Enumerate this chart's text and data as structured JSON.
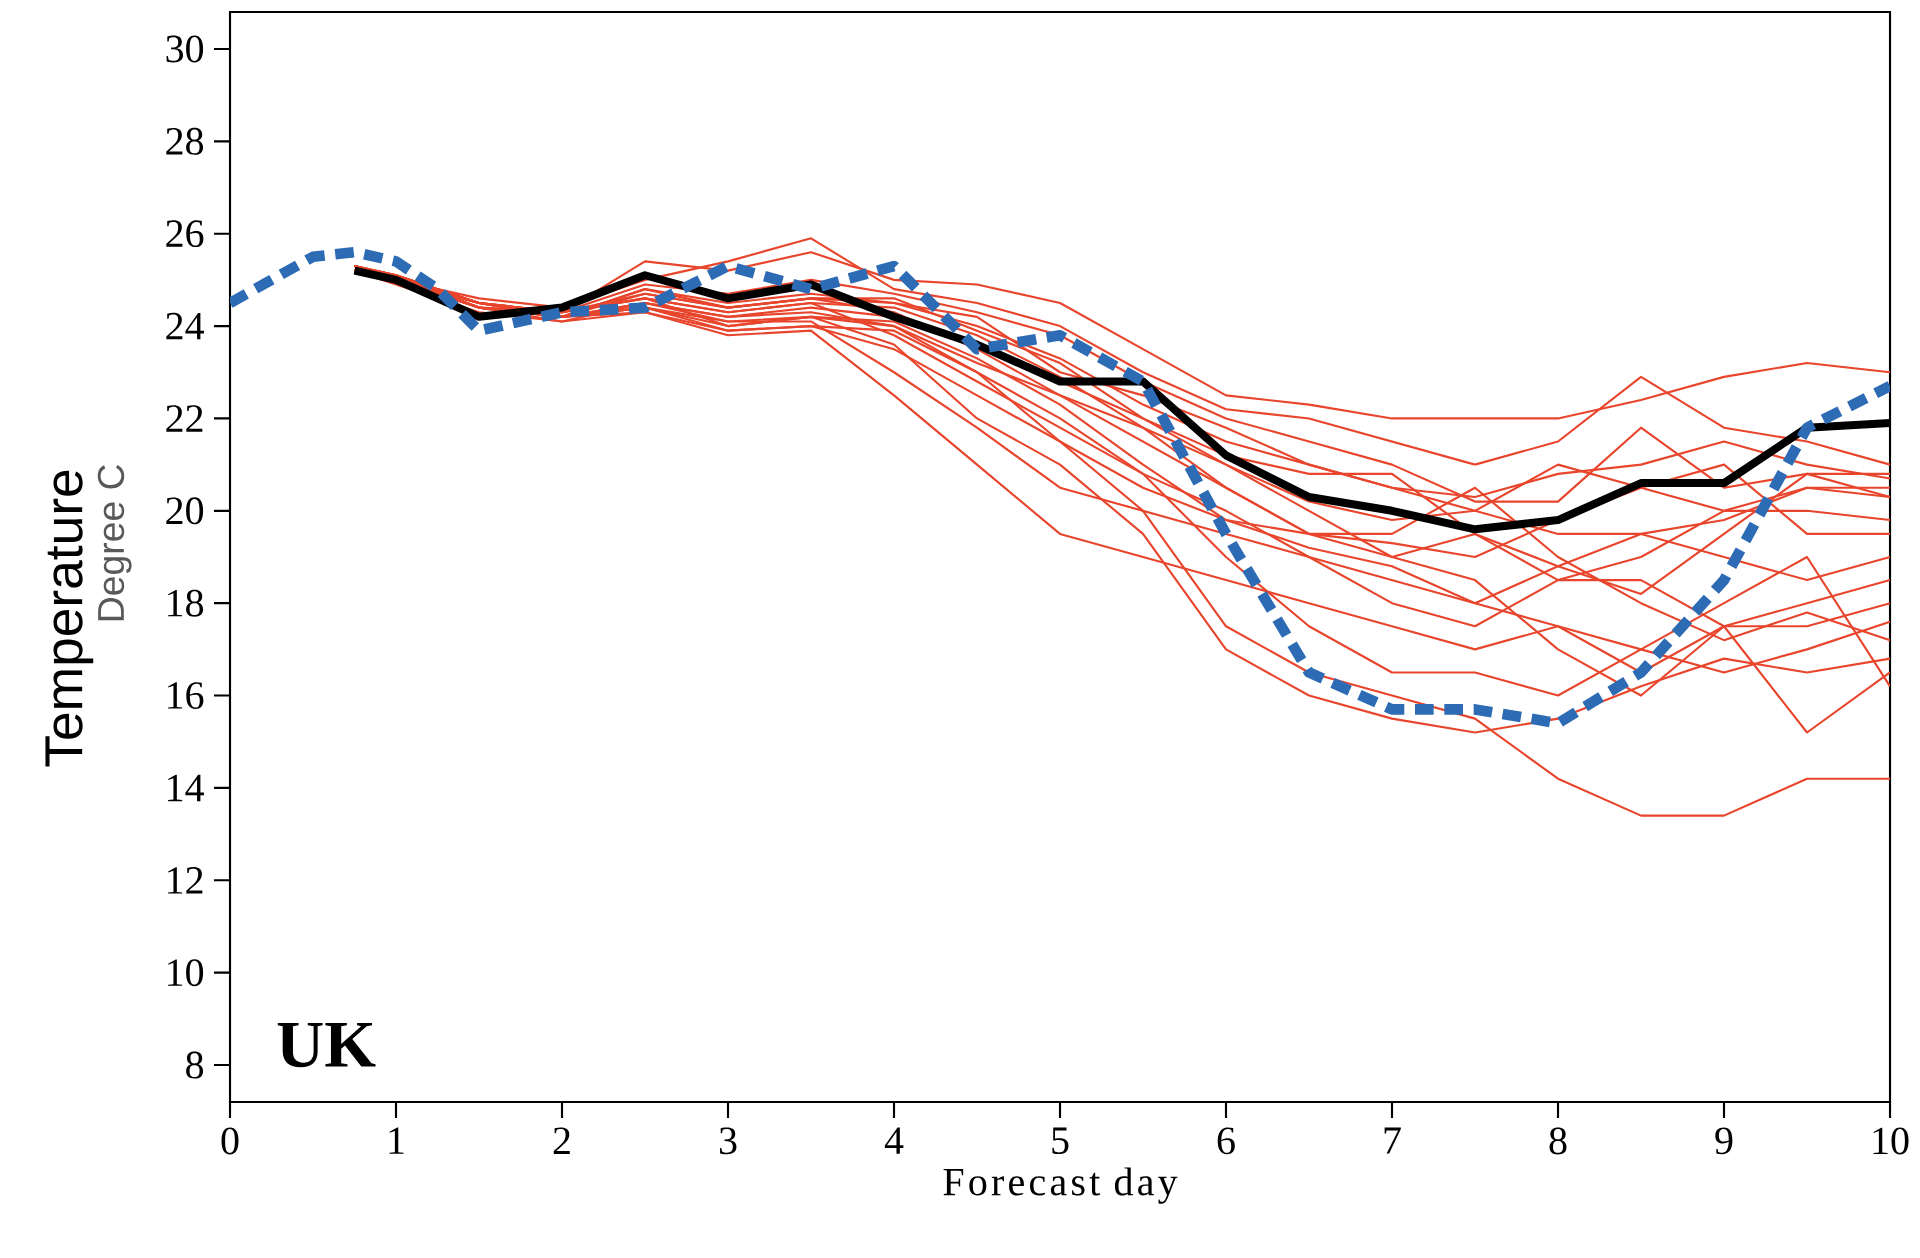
{
  "chart_data": {
    "type": "line",
    "xlabel": "Forecast day",
    "ylabel": "Temperature",
    "annotations": [
      "Degree C",
      "UK"
    ],
    "xlim": [
      0,
      10
    ],
    "ylim": [
      7.2,
      30.8
    ],
    "xticks": [
      0,
      1,
      2,
      3,
      4,
      5,
      6,
      7,
      8,
      9,
      10
    ],
    "yticks": [
      8,
      10,
      12,
      14,
      16,
      18,
      20,
      22,
      24,
      26,
      28,
      30
    ],
    "grid": false,
    "marker": "none",
    "series": [
      {
        "color": "#e8452c",
        "x": [
          0.75,
          1,
          1.5,
          2,
          2.5,
          3,
          3.5,
          4,
          4.5,
          5,
          5.5,
          6,
          6.5,
          7,
          7.5,
          8,
          8.5,
          9,
          9.5,
          10
        ],
        "values": [
          25.3,
          25.1,
          24.5,
          24.3,
          25.4,
          25.2,
          25.6,
          25.0,
          24.9,
          24.5,
          23.5,
          22.5,
          22.3,
          22.0,
          22.0,
          22.0,
          22.4,
          22.9,
          23.2,
          23.0
        ]
      },
      {
        "color": "#e8452c",
        "x": [
          0.75,
          1,
          1.5,
          2,
          2.5,
          3,
          3.5,
          4,
          4.5,
          5,
          5.5,
          6,
          6.5,
          7,
          7.5,
          8,
          8.5,
          9,
          9.5,
          10
        ],
        "values": [
          25.2,
          25.0,
          24.6,
          24.4,
          25.0,
          25.4,
          25.9,
          24.8,
          24.5,
          24.0,
          23.0,
          22.2,
          22.0,
          21.5,
          21.0,
          21.5,
          22.9,
          21.8,
          21.5,
          21.0
        ]
      },
      {
        "color": "#e8452c",
        "x": [
          0.75,
          1,
          1.5,
          2,
          2.5,
          3,
          3.5,
          4,
          4.5,
          5,
          5.5,
          6,
          6.5,
          7,
          7.5,
          8,
          8.5,
          9,
          9.5,
          10
        ],
        "values": [
          25.3,
          25.0,
          24.4,
          24.2,
          24.8,
          24.4,
          24.6,
          24.5,
          24.0,
          23.3,
          22.3,
          21.5,
          21.0,
          20.5,
          20.3,
          20.8,
          21.0,
          21.5,
          21.0,
          20.7
        ]
      },
      {
        "color": "#e8452c",
        "x": [
          0.75,
          1,
          1.5,
          2,
          2.5,
          3,
          3.5,
          4,
          4.5,
          5,
          5.5,
          6,
          6.5,
          7,
          7.5,
          8,
          8.5,
          9,
          9.5,
          10
        ],
        "values": [
          25.2,
          24.9,
          24.3,
          24.1,
          24.5,
          24.2,
          24.4,
          24.2,
          23.6,
          22.8,
          22.0,
          21.0,
          20.2,
          19.8,
          20.0,
          21.0,
          20.5,
          20.0,
          20.5,
          20.3
        ]
      },
      {
        "color": "#e8452c",
        "x": [
          0.75,
          1,
          1.5,
          2,
          2.5,
          3,
          3.5,
          4,
          4.5,
          5,
          5.5,
          6,
          6.5,
          7,
          7.5,
          8,
          8.5,
          9,
          9.5,
          10
        ],
        "values": [
          25.3,
          25.1,
          24.5,
          24.3,
          24.6,
          24.0,
          24.2,
          24.0,
          23.2,
          22.5,
          21.5,
          20.5,
          19.5,
          19.0,
          19.5,
          18.5,
          19.0,
          20.0,
          20.0,
          19.8
        ]
      },
      {
        "color": "#e8452c",
        "x": [
          0.75,
          1,
          1.5,
          2,
          2.5,
          3,
          3.5,
          4,
          4.5,
          5,
          5.5,
          6,
          6.5,
          7,
          7.5,
          8,
          8.5,
          9,
          9.5,
          10
        ],
        "values": [
          25.2,
          25.0,
          24.4,
          24.2,
          24.4,
          23.9,
          24.0,
          23.5,
          22.5,
          21.5,
          20.5,
          19.8,
          19.2,
          18.8,
          18.0,
          18.8,
          19.5,
          19.0,
          18.5,
          19.0
        ]
      },
      {
        "color": "#e8452c",
        "x": [
          0.75,
          1,
          1.5,
          2,
          2.5,
          3,
          3.5,
          4,
          4.5,
          5,
          5.5,
          6,
          6.5,
          7,
          7.5,
          8,
          8.5,
          9,
          9.5,
          10
        ],
        "values": [
          25.3,
          25.0,
          24.5,
          24.2,
          24.5,
          24.1,
          24.1,
          23.0,
          21.8,
          20.5,
          20.0,
          19.5,
          19.0,
          18.0,
          17.5,
          18.5,
          18.5,
          17.5,
          18.0,
          18.5
        ]
      },
      {
        "color": "#e8452c",
        "x": [
          0.75,
          1,
          1.5,
          2,
          2.5,
          3,
          3.5,
          4,
          4.5,
          5,
          5.5,
          6,
          6.5,
          7,
          7.5,
          8,
          8.5,
          9,
          9.5,
          10
        ],
        "values": [
          25.2,
          25.0,
          24.4,
          24.1,
          24.3,
          23.8,
          23.9,
          22.5,
          21.0,
          19.5,
          19.0,
          18.5,
          18.0,
          17.5,
          17.0,
          17.5,
          16.5,
          17.5,
          17.5,
          18.0
        ]
      },
      {
        "color": "#e8452c",
        "x": [
          0.75,
          1,
          1.5,
          2,
          2.5,
          3,
          3.5,
          4,
          4.5,
          5,
          5.5,
          6,
          6.5,
          7,
          7.5,
          8,
          8.5,
          9,
          9.5,
          10
        ],
        "values": [
          25.3,
          25.1,
          24.5,
          24.3,
          24.6,
          24.3,
          24.5,
          23.8,
          22.8,
          21.8,
          20.8,
          19.0,
          17.5,
          16.5,
          16.5,
          16.0,
          17.0,
          16.5,
          17.0,
          17.6
        ]
      },
      {
        "color": "#e8452c",
        "x": [
          0.75,
          1,
          1.5,
          2,
          2.5,
          3,
          3.5,
          4,
          4.5,
          5,
          5.5,
          6,
          6.5,
          7,
          7.5,
          8,
          8.5,
          9,
          9.5,
          10
        ],
        "values": [
          25.2,
          25.0,
          24.4,
          24.2,
          24.4,
          24.0,
          24.2,
          23.6,
          22.0,
          21.0,
          19.5,
          17.0,
          16.0,
          15.5,
          15.2,
          15.5,
          16.2,
          16.8,
          16.5,
          16.8
        ]
      },
      {
        "color": "#e8452c",
        "x": [
          0.75,
          1,
          1.5,
          2,
          2.5,
          3,
          3.5,
          4,
          4.5,
          5,
          5.5,
          6,
          6.5,
          7,
          7.5,
          8,
          8.5,
          9,
          9.5,
          10
        ],
        "values": [
          25.3,
          25.0,
          24.5,
          24.2,
          24.5,
          24.2,
          24.3,
          24.0,
          23.0,
          21.5,
          20.0,
          17.5,
          16.5,
          16.0,
          15.5,
          14.2,
          13.4,
          13.4,
          14.2,
          14.2
        ]
      },
      {
        "color": "#e8452c",
        "x": [
          0.75,
          1,
          1.5,
          2,
          2.5,
          3,
          3.5,
          4,
          4.5,
          5,
          5.5,
          6,
          6.5,
          7,
          7.5,
          8,
          8.5,
          9,
          9.5,
          10
        ],
        "values": [
          25.2,
          25.1,
          24.4,
          24.3,
          24.7,
          24.4,
          24.6,
          24.3,
          23.5,
          22.5,
          21.8,
          21.0,
          20.0,
          19.0,
          18.5,
          17.0,
          16.0,
          17.5,
          15.2,
          16.5
        ]
      },
      {
        "color": "#e8452c",
        "x": [
          0.75,
          1,
          1.5,
          2,
          2.5,
          3,
          3.5,
          4,
          4.5,
          5,
          5.5,
          6,
          6.5,
          7,
          7.5,
          8,
          8.5,
          9,
          9.5,
          10
        ],
        "values": [
          25.3,
          25.0,
          24.5,
          24.2,
          24.8,
          24.5,
          24.7,
          24.5,
          24.2,
          23.0,
          22.5,
          21.8,
          21.0,
          20.5,
          20.0,
          19.5,
          19.5,
          19.8,
          20.5,
          20.5
        ]
      },
      {
        "color": "#e8452c",
        "x": [
          0.75,
          1,
          1.5,
          2,
          2.5,
          3,
          3.5,
          4,
          4.5,
          5,
          5.5,
          6,
          6.5,
          7,
          7.5,
          8,
          8.5,
          9,
          9.5,
          10
        ],
        "values": [
          25.2,
          25.0,
          24.4,
          24.3,
          24.9,
          24.7,
          25.0,
          24.7,
          24.3,
          23.8,
          22.8,
          22.0,
          21.5,
          21.0,
          20.2,
          20.2,
          21.8,
          20.5,
          20.8,
          20.3
        ]
      },
      {
        "color": "#e8452c",
        "x": [
          0.75,
          1,
          1.5,
          2,
          2.5,
          3,
          3.5,
          4,
          4.5,
          5,
          5.5,
          6,
          6.5,
          7,
          7.5,
          8,
          8.5,
          9,
          9.5,
          10
        ],
        "values": [
          25.3,
          25.1,
          24.5,
          24.2,
          24.4,
          24.1,
          24.2,
          24.1,
          23.3,
          22.3,
          21.0,
          19.8,
          19.5,
          19.3,
          19.0,
          19.8,
          20.5,
          21.0,
          19.5,
          19.5
        ]
      },
      {
        "color": "#e8452c",
        "x": [
          0.75,
          1,
          1.5,
          2,
          2.5,
          3,
          3.5,
          4,
          4.5,
          5,
          5.5,
          6,
          6.5,
          7,
          7.5,
          8,
          8.5,
          9,
          9.5,
          10
        ],
        "values": [
          25.2,
          25.0,
          24.4,
          24.2,
          24.3,
          23.9,
          24.0,
          23.9,
          23.0,
          22.0,
          20.8,
          20.0,
          19.0,
          18.5,
          18.0,
          17.5,
          17.0,
          18.0,
          19.0,
          16.2
        ]
      },
      {
        "color": "#e8452c",
        "x": [
          0.75,
          1,
          1.5,
          2,
          2.5,
          3,
          3.5,
          4,
          4.5,
          5,
          5.5,
          6,
          6.5,
          7,
          7.5,
          8,
          8.5,
          9,
          9.5,
          10
        ],
        "values": [
          25.3,
          25.0,
          24.5,
          24.3,
          24.6,
          24.3,
          24.5,
          24.4,
          23.8,
          22.9,
          21.8,
          20.5,
          19.5,
          19.5,
          20.5,
          19.0,
          18.0,
          17.2,
          17.8,
          17.2
        ]
      },
      {
        "color": "#e8452c",
        "x": [
          0.75,
          1,
          1.5,
          2,
          2.5,
          3,
          3.5,
          4,
          4.5,
          5,
          5.5,
          6,
          6.5,
          7,
          7.5,
          8,
          8.5,
          9,
          9.5,
          10
        ],
        "values": [
          25.2,
          25.1,
          24.4,
          24.2,
          24.7,
          24.4,
          24.6,
          24.6,
          23.9,
          23.2,
          22.0,
          21.2,
          20.8,
          20.8,
          19.5,
          18.8,
          18.2,
          19.5,
          20.8,
          20.8
        ]
      },
      {
        "color": "#000000",
        "x": [
          0.75,
          1,
          1.5,
          2,
          2.5,
          3,
          3.5,
          4,
          4.5,
          5,
          5.5,
          6,
          6.5,
          7,
          7.5,
          8,
          8.5,
          9,
          9.5,
          10
        ],
        "values": [
          25.2,
          25.0,
          24.2,
          24.4,
          25.1,
          24.6,
          24.9,
          24.2,
          23.6,
          22.8,
          22.8,
          21.2,
          20.3,
          20.0,
          19.6,
          19.8,
          20.6,
          20.6,
          21.8,
          21.9
        ]
      },
      {
        "color": "#2e6bb5",
        "line_style": "dashed",
        "x": [
          0,
          0.5,
          0.75,
          1,
          1.25,
          1.5,
          2,
          2.5,
          3,
          3.5,
          4,
          4.5,
          5,
          5.5,
          6,
          6.5,
          7,
          7.5,
          8,
          8.5,
          9,
          9.5,
          10
        ],
        "values": [
          24.5,
          25.5,
          25.6,
          25.4,
          24.8,
          23.9,
          24.3,
          24.4,
          25.3,
          24.8,
          25.3,
          23.5,
          23.8,
          22.8,
          19.5,
          16.5,
          15.7,
          15.7,
          15.4,
          16.5,
          18.5,
          21.8,
          22.7
        ]
      }
    ]
  }
}
